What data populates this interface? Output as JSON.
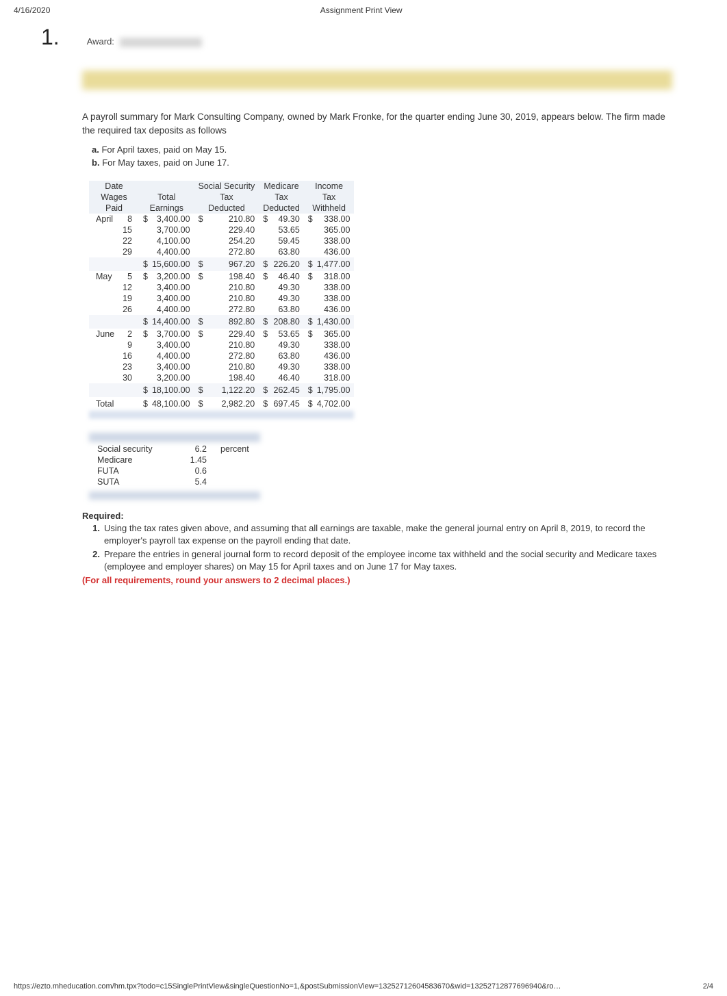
{
  "header": {
    "date": "4/16/2020",
    "title": "Assignment Print View"
  },
  "question": {
    "number": "1.",
    "award_label": "Award:"
  },
  "intro": {
    "p1": "A payroll summary for Mark Consulting Company, owned by Mark Fronke, for the quarter ending June 30, 2019, appears below. The firm made the required tax deposits as follows",
    "a_label": "a.",
    "a_text": "For April taxes, paid on May 15.",
    "b_label": "b.",
    "b_text": "For May taxes, paid on June 17."
  },
  "payroll": {
    "columns": {
      "c1a": "Date",
      "c1b": "Wages",
      "c1c": "Paid",
      "c2a": "Total",
      "c2b": "Earnings",
      "c3a": "Social Security",
      "c3b": "Tax",
      "c3c": "Deducted",
      "c4a": "Medicare",
      "c4b": "Tax",
      "c4c": "Deducted",
      "c5a": "Income",
      "c5b": "Tax",
      "c5c": "Withheld"
    },
    "months": [
      {
        "name": "April",
        "rows": [
          {
            "day": "8",
            "earn": "3,400.00",
            "ss": "210.80",
            "med": "49.30",
            "inc": "338.00",
            "lead": true
          },
          {
            "day": "15",
            "earn": "3,700.00",
            "ss": "229.40",
            "med": "53.65",
            "inc": "365.00"
          },
          {
            "day": "22",
            "earn": "4,100.00",
            "ss": "254.20",
            "med": "59.45",
            "inc": "338.00"
          },
          {
            "day": "29",
            "earn": "4,400.00",
            "ss": "272.80",
            "med": "63.80",
            "inc": "436.00"
          }
        ],
        "subtotal": {
          "earn": "15,600.00",
          "ss": "967.20",
          "med": "226.20",
          "inc": "1,477.00"
        }
      },
      {
        "name": "May",
        "rows": [
          {
            "day": "5",
            "earn": "3,200.00",
            "ss": "198.40",
            "med": "46.40",
            "inc": "318.00",
            "lead": true
          },
          {
            "day": "12",
            "earn": "3,400.00",
            "ss": "210.80",
            "med": "49.30",
            "inc": "338.00"
          },
          {
            "day": "19",
            "earn": "3,400.00",
            "ss": "210.80",
            "med": "49.30",
            "inc": "338.00"
          },
          {
            "day": "26",
            "earn": "4,400.00",
            "ss": "272.80",
            "med": "63.80",
            "inc": "436.00"
          }
        ],
        "subtotal": {
          "earn": "14,400.00",
          "ss": "892.80",
          "med": "208.80",
          "inc": "1,430.00"
        }
      },
      {
        "name": "June",
        "rows": [
          {
            "day": "2",
            "earn": "3,700.00",
            "ss": "229.40",
            "med": "53.65",
            "inc": "365.00",
            "lead": true
          },
          {
            "day": "9",
            "earn": "3,400.00",
            "ss": "210.80",
            "med": "49.30",
            "inc": "338.00"
          },
          {
            "day": "16",
            "earn": "4,400.00",
            "ss": "272.80",
            "med": "63.80",
            "inc": "436.00"
          },
          {
            "day": "23",
            "earn": "3,400.00",
            "ss": "210.80",
            "med": "49.30",
            "inc": "338.00"
          },
          {
            "day": "30",
            "earn": "3,200.00",
            "ss": "198.40",
            "med": "46.40",
            "inc": "318.00"
          }
        ],
        "subtotal": {
          "earn": "18,100.00",
          "ss": "1,122.20",
          "med": "262.45",
          "inc": "1,795.00"
        }
      }
    ],
    "grand": {
      "label": "Total",
      "earn": "48,100.00",
      "ss": "2,982.20",
      "med": "697.45",
      "inc": "4,702.00"
    }
  },
  "rates": {
    "rows": [
      {
        "label": "Social security",
        "val": "6.2",
        "unit": "percent"
      },
      {
        "label": "Medicare",
        "val": "1.45",
        "unit": ""
      },
      {
        "label": "FUTA",
        "val": "0.6",
        "unit": ""
      },
      {
        "label": "SUTA",
        "val": "5.4",
        "unit": ""
      }
    ]
  },
  "required": {
    "head": "Required:",
    "items": [
      {
        "n": "1.",
        "text": "Using the tax rates given above, and assuming that all earnings are taxable, make the general journal entry on April 8, 2019, to record the employer's payroll tax expense on the payroll ending that date."
      },
      {
        "n": "2.",
        "text": "Prepare the entries in general journal form to record deposit of the employee income tax withheld and the social security and Medicare taxes (employee and employer shares) on May 15 for April taxes and on June 17 for May taxes."
      }
    ],
    "note": "(For all requirements, round your answers to 2 decimal places.)"
  },
  "footer": {
    "url": "https://ezto.mheducation.com/hm.tpx?todo=c15SinglePrintView&singleQuestionNo=1,&postSubmissionView=13252712604583670&wid=13252712877696940&ro…",
    "page": "2/4"
  },
  "colors": {
    "header_bg": "#eef2f7",
    "subtotal_bg": "#f4f6fa",
    "blur_light": "#e1e6ef",
    "blur_yellow": "#e9dc9a",
    "red": "#d32f2f"
  }
}
